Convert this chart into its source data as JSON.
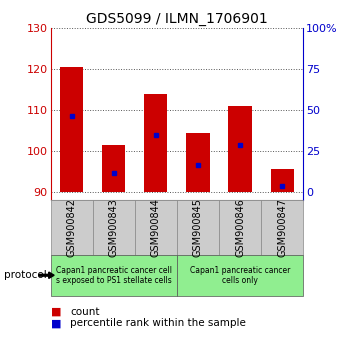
{
  "title": "GDS5099 / ILMN_1706901",
  "samples": [
    "GSM900842",
    "GSM900843",
    "GSM900844",
    "GSM900845",
    "GSM900846",
    "GSM900847"
  ],
  "bar_bottom": 90,
  "bar_tops": [
    120.5,
    101.5,
    114.0,
    104.5,
    111.0,
    95.5
  ],
  "percentile_values": [
    108.5,
    94.5,
    104.0,
    96.5,
    101.5,
    91.5
  ],
  "ylim": [
    88,
    130
  ],
  "yticks_left": [
    90,
    100,
    110,
    120,
    130
  ],
  "yticks_right_labels": [
    "0",
    "25",
    "50",
    "75",
    "100%"
  ],
  "yticks_right_pos": [
    90,
    100,
    110,
    120,
    130
  ],
  "bar_color": "#cc0000",
  "percentile_color": "#0000cc",
  "bar_width": 0.55,
  "left_axis_color": "#cc0000",
  "right_axis_color": "#0000cc",
  "protocol_label": "protocol",
  "group1_label": "Capan1 pancreatic cancer cell\ns exposed to PS1 stellate cells",
  "group2_label": "Capan1 pancreatic cancer\ncells only",
  "group1_color": "#90ee90",
  "group2_color": "#90ee90",
  "xlabel_bg_color": "#cccccc",
  "legend_count_label": "count",
  "legend_pct_label": "percentile rank within the sample",
  "title_fontsize": 10,
  "tick_fontsize": 8,
  "label_fontsize": 7
}
